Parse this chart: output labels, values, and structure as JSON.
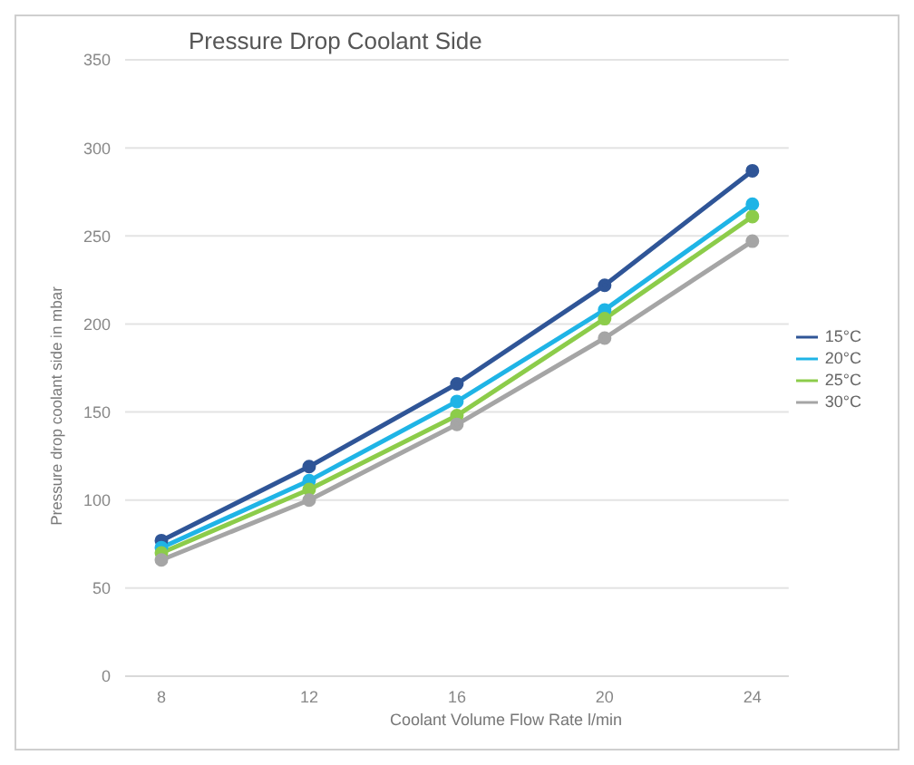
{
  "chart_data": {
    "type": "line",
    "title": "Pressure Drop Coolant Side",
    "xlabel": "Coolant Volume Flow Rate l/min",
    "ylabel": "Pressure drop coolant side in mbar",
    "categories": [
      "8",
      "12",
      "16",
      "20",
      "24"
    ],
    "series": [
      {
        "name": "15°C",
        "color": "#2f5597",
        "values": [
          77,
          119,
          166,
          222,
          287
        ]
      },
      {
        "name": "20°C",
        "color": "#1fb4e6",
        "values": [
          73,
          111,
          156,
          208,
          268
        ]
      },
      {
        "name": "25°C",
        "color": "#8ccc4a",
        "values": [
          70,
          106,
          148,
          203,
          261
        ]
      },
      {
        "name": "30°C",
        "color": "#a5a5a5",
        "values": [
          66,
          100,
          143,
          192,
          247
        ]
      }
    ],
    "ylim": [
      0,
      350
    ],
    "yticks": [
      0,
      50,
      100,
      150,
      200,
      250,
      300,
      350
    ],
    "grid": "y",
    "legend": "right",
    "marker": "circle",
    "line_style": "solid"
  }
}
